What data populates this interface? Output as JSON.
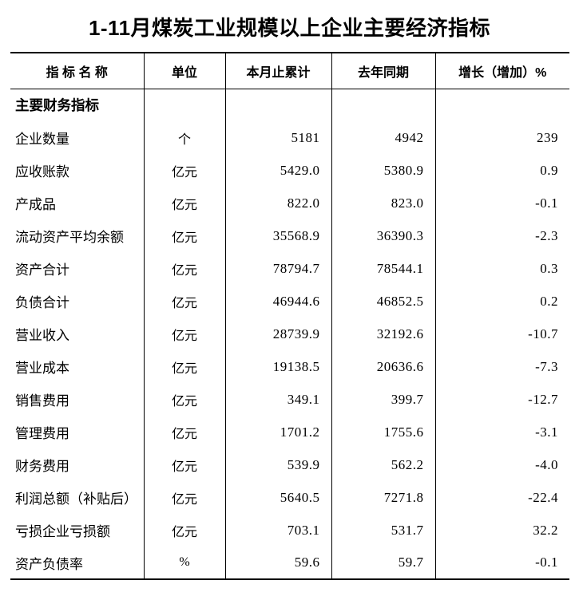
{
  "title": "1-11月煤炭工业规模以上企业主要经济指标",
  "colors": {
    "text": "#000000",
    "border": "#000000",
    "background": "#ffffff"
  },
  "table": {
    "headers": [
      "指 标 名 称",
      "单位",
      "本月止累计",
      "去年同期",
      "增长（增加）%"
    ],
    "rows": [
      {
        "name": "主要财务指标",
        "unit": "",
        "current": "",
        "previous": "",
        "change": "",
        "section": true
      },
      {
        "name": "企业数量",
        "unit": "个",
        "current": "5181",
        "previous": "4942",
        "change": "239"
      },
      {
        "name": "应收账款",
        "unit": "亿元",
        "current": "5429.0",
        "previous": "5380.9",
        "change": "0.9"
      },
      {
        "name": "产成品",
        "unit": "亿元",
        "current": "822.0",
        "previous": "823.0",
        "change": "-0.1"
      },
      {
        "name": "流动资产平均余额",
        "unit": "亿元",
        "current": "35568.9",
        "previous": "36390.3",
        "change": "-2.3"
      },
      {
        "name": "资产合计",
        "unit": "亿元",
        "current": "78794.7",
        "previous": "78544.1",
        "change": "0.3"
      },
      {
        "name": "负债合计",
        "unit": "亿元",
        "current": "46944.6",
        "previous": "46852.5",
        "change": "0.2"
      },
      {
        "name": "营业收入",
        "unit": "亿元",
        "current": "28739.9",
        "previous": "32192.6",
        "change": "-10.7"
      },
      {
        "name": "营业成本",
        "unit": "亿元",
        "current": "19138.5",
        "previous": "20636.6",
        "change": "-7.3"
      },
      {
        "name": "销售费用",
        "unit": "亿元",
        "current": "349.1",
        "previous": "399.7",
        "change": "-12.7"
      },
      {
        "name": "管理费用",
        "unit": "亿元",
        "current": "1701.2",
        "previous": "1755.6",
        "change": "-3.1"
      },
      {
        "name": "财务费用",
        "unit": "亿元",
        "current": "539.9",
        "previous": "562.2",
        "change": "-4.0"
      },
      {
        "name": "利润总额（补贴后）",
        "unit": "亿元",
        "current": "5640.5",
        "previous": "7271.8",
        "change": "-22.4"
      },
      {
        "name": "亏损企业亏损额",
        "unit": "亿元",
        "current": "703.1",
        "previous": "531.7",
        "change": "32.2"
      },
      {
        "name": "资产负债率",
        "unit": "%",
        "current": "59.6",
        "previous": "59.7",
        "change": "-0.1"
      }
    ]
  }
}
